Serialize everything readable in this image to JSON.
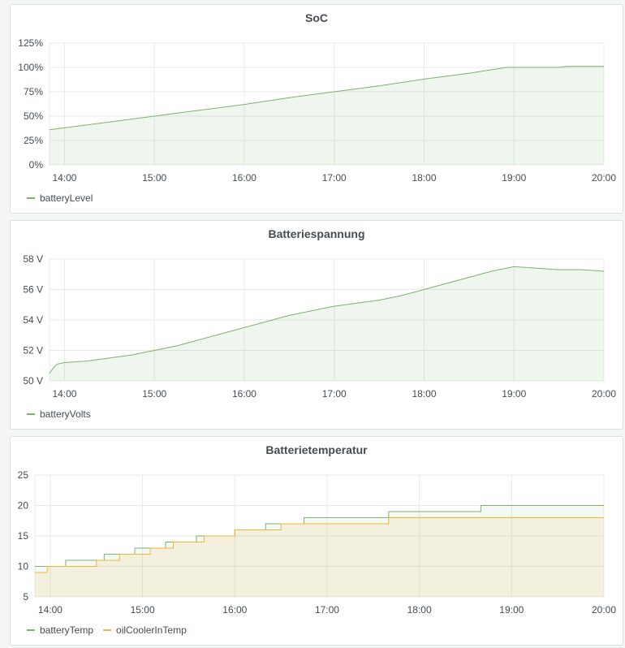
{
  "chart_data": [
    {
      "type": "area",
      "title": "SoC",
      "xlabel": "",
      "ylabel": "",
      "x_ticks": [
        "14:00",
        "15:00",
        "16:00",
        "17:00",
        "18:00",
        "19:00",
        "20:00"
      ],
      "x_range": [
        "13:50",
        "20:00"
      ],
      "y_ticks": [
        "0%",
        "25%",
        "50%",
        "75%",
        "100%",
        "125%"
      ],
      "ylim": [
        0,
        125
      ],
      "grid": true,
      "legend_placement": "bottom-left",
      "series": [
        {
          "name": "batteryLevel",
          "color": "#7eb26d",
          "x": [
            "13:50",
            "14:00",
            "14:30",
            "15:00",
            "15:30",
            "16:00",
            "16:30",
            "17:00",
            "17:30",
            "18:00",
            "18:30",
            "18:55",
            "19:05",
            "19:30",
            "19:35",
            "20:00"
          ],
          "y": [
            36,
            38,
            44,
            50,
            56,
            62,
            69,
            75,
            81,
            88,
            94,
            100,
            100,
            100,
            101,
            101
          ]
        }
      ]
    },
    {
      "type": "area",
      "title": "Batteriespannung",
      "xlabel": "",
      "ylabel": "",
      "x_ticks": [
        "14:00",
        "15:00",
        "16:00",
        "17:00",
        "18:00",
        "19:00",
        "20:00"
      ],
      "x_range": [
        "13:50",
        "20:00"
      ],
      "y_ticks": [
        "50 V",
        "52 V",
        "54 V",
        "56 V",
        "58 V"
      ],
      "ylim": [
        50,
        58
      ],
      "grid": true,
      "legend_placement": "bottom-left",
      "series": [
        {
          "name": "batteryVolts",
          "color": "#7eb26d",
          "x": [
            "13:50",
            "13:53",
            "13:55",
            "14:00",
            "14:15",
            "14:30",
            "14:45",
            "15:00",
            "15:15",
            "15:30",
            "15:45",
            "16:00",
            "16:15",
            "16:30",
            "16:45",
            "17:00",
            "17:15",
            "17:30",
            "17:45",
            "18:00",
            "18:15",
            "18:30",
            "18:45",
            "19:00",
            "19:15",
            "19:30",
            "19:45",
            "20:00"
          ],
          "y": [
            50.5,
            50.9,
            51.1,
            51.2,
            51.3,
            51.5,
            51.7,
            52.0,
            52.3,
            52.7,
            53.1,
            53.5,
            53.9,
            54.3,
            54.6,
            54.9,
            55.1,
            55.3,
            55.6,
            56.0,
            56.4,
            56.8,
            57.2,
            57.5,
            57.4,
            57.3,
            57.3,
            57.2
          ]
        }
      ]
    },
    {
      "type": "line",
      "title": "Batterietemperatur",
      "xlabel": "",
      "ylabel": "",
      "x_ticks": [
        "14:00",
        "15:00",
        "16:00",
        "17:00",
        "18:00",
        "19:00",
        "20:00"
      ],
      "x_range": [
        "13:50",
        "20:00"
      ],
      "y_ticks": [
        "5",
        "10",
        "15",
        "20",
        "25"
      ],
      "ylim": [
        5,
        25
      ],
      "grid": true,
      "legend_placement": "bottom-left",
      "series": [
        {
          "name": "batteryTemp",
          "color": "#7eb26d",
          "x": [
            "13:50",
            "14:10",
            "14:35",
            "14:55",
            "15:15",
            "15:35",
            "16:00",
            "16:20",
            "16:45",
            "17:40",
            "18:40",
            "20:00"
          ],
          "y": [
            10,
            11,
            12,
            13,
            14,
            15,
            16,
            17,
            18,
            19,
            20,
            20
          ]
        },
        {
          "name": "oilCoolerInTemp",
          "color": "#eab839",
          "x": [
            "13:50",
            "13:58",
            "14:30",
            "14:45",
            "15:05",
            "15:20",
            "15:40",
            "16:00",
            "16:30",
            "16:50",
            "17:40",
            "20:00"
          ],
          "y": [
            9,
            10,
            11,
            12,
            13,
            14,
            15,
            16,
            17,
            17,
            18,
            18
          ]
        }
      ]
    }
  ]
}
